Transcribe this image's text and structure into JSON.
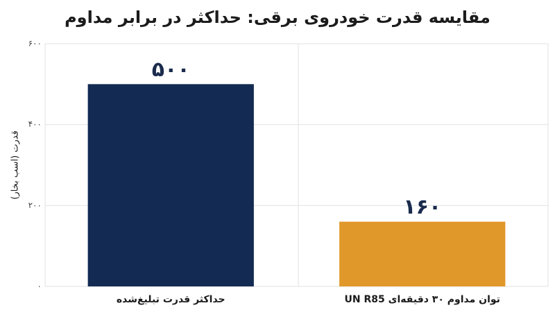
{
  "chart_data": {
    "type": "bar",
    "title": "مقایسه قدرت خودروی برقی: حداکثر در برابر مداوم",
    "y_label": "قدرت (اسب بخار)",
    "categories": [
      "حداکثر قدرت تبلیغ‌شده",
      "توان مداوم ۳۰ دقیقه‌ای UN R85"
    ],
    "values": [
      500,
      160
    ],
    "value_labels": [
      "۵۰۰",
      "۱۶۰"
    ],
    "colors": [
      "#132a52",
      "#e0982a"
    ],
    "ylim": [
      0,
      600
    ],
    "yticks": [
      {
        "value": 0,
        "label": "۰"
      },
      {
        "value": 200,
        "label": "۲۰۰"
      },
      {
        "value": 400,
        "label": "۴۰۰"
      },
      {
        "value": 600,
        "label": "۶۰۰"
      }
    ],
    "grid": true
  }
}
